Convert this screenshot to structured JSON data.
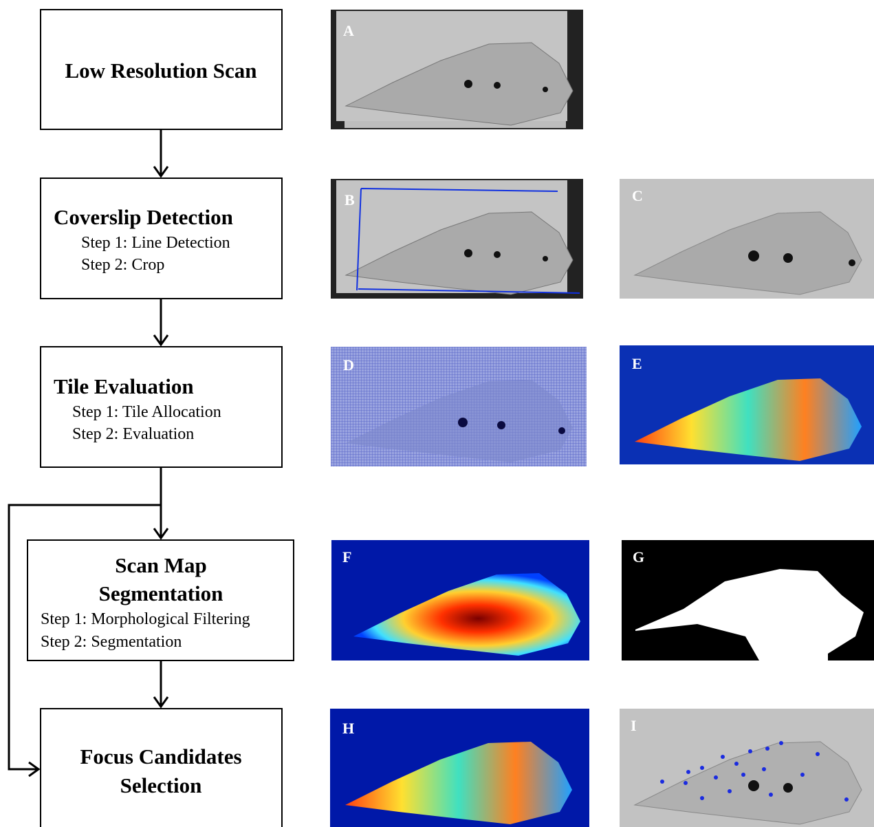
{
  "steps": [
    {
      "title": [
        "Low Resolution Scan"
      ],
      "substeps": []
    },
    {
      "title": [
        "Coverslip Detection"
      ],
      "substeps": [
        "Step 1: Line Detection",
        "Step 2: Crop"
      ]
    },
    {
      "title": [
        "Tile Evaluation"
      ],
      "substeps": [
        "Step 1: Tile Allocation",
        "Step 2: Evaluation"
      ]
    },
    {
      "title": [
        "Scan Map",
        "Segmentation"
      ],
      "substeps": [
        "Step 1: Morphological Filtering",
        "Step 2: Segmentation"
      ]
    },
    {
      "title": [
        "Focus Candidates",
        "Selection"
      ],
      "substeps": []
    }
  ],
  "panels": [
    "A",
    "B",
    "C",
    "D",
    "E",
    "F",
    "G",
    "H",
    "I"
  ]
}
